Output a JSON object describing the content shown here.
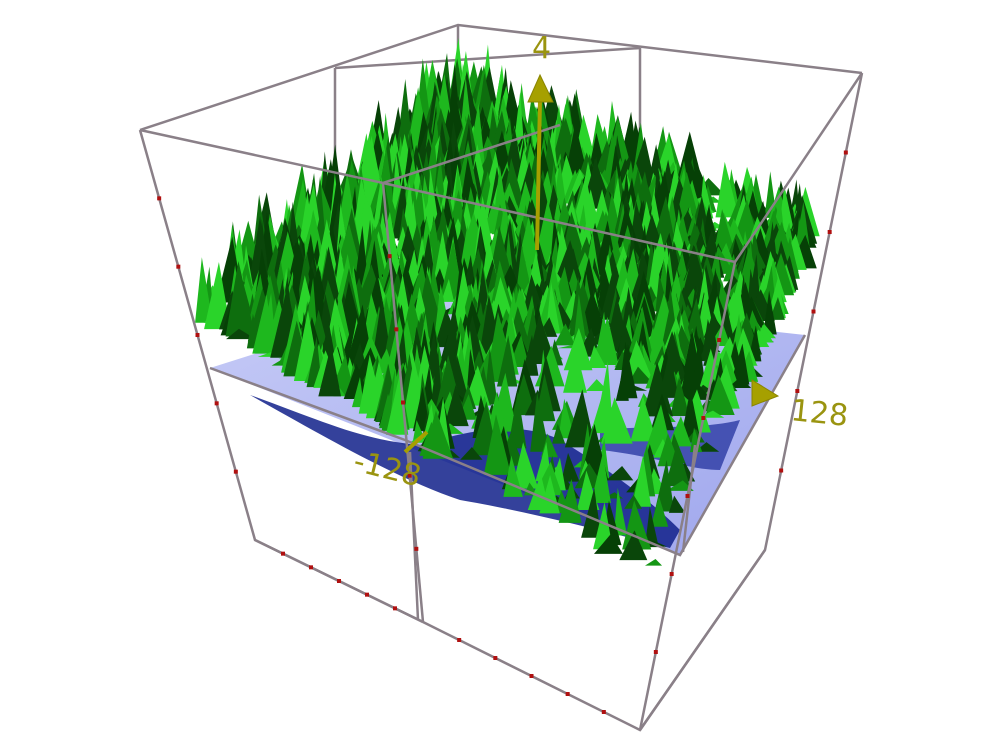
{
  "scene": {
    "axis_labels": {
      "z_max": "4",
      "y_max": "128",
      "x_min": "-128"
    },
    "colors": {
      "background": "#ffffff",
      "terrain_light": "#2ad42a",
      "terrain_mid": "#149614",
      "terrain_dark": "#0a460a",
      "water_plane": "#a8aef0",
      "water_deep": "#10208a",
      "axis_arrow": "#a6a000",
      "frame_line": "#8a8088",
      "frame_tick": "#b01010"
    }
  }
}
